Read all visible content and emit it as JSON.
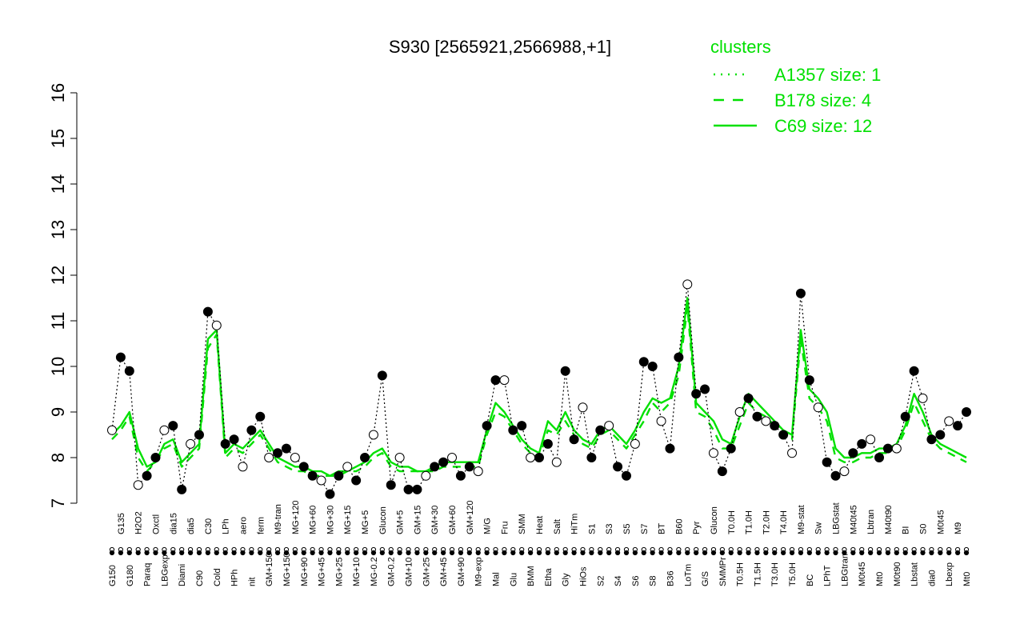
{
  "chart_data": {
    "type": "line",
    "title": "S930 [2565921,2566988,+1]",
    "xlabel": "",
    "ylabel": "",
    "ylim": [
      7,
      16
    ],
    "y_ticks": [
      7,
      8,
      9,
      10,
      11,
      12,
      13,
      14,
      15,
      16
    ],
    "x_tick_labels": [
      "G150",
      "G135",
      "G180",
      "H2O2",
      "Paraq",
      "Oxctl",
      "LBGexp",
      "dia15",
      "Diami",
      "dia5",
      "C90",
      "C30",
      "Cold",
      "LPh",
      "HPh",
      "aero",
      "nit",
      "ferm",
      "GM+150",
      "M9-tran",
      "MG+150",
      "MG+120",
      "MG+90",
      "MG+60",
      "MG+45",
      "MG+30",
      "MG+25",
      "MG+15",
      "MG+10",
      "MG+5",
      "MG-0.2",
      "Glucon",
      "GM-0.2",
      "GM+5",
      "GM+10",
      "GM+15",
      "GM+25",
      "GM+30",
      "GM+45",
      "GM+60",
      "GM+90",
      "GM+120",
      "M9-exp",
      "M/G",
      "Mal",
      "Fru",
      "Glu",
      "SMM",
      "BMM",
      "Heat",
      "Etha",
      "Salt",
      "Gly",
      "HiTm",
      "HiOs",
      "S1",
      "S2",
      "S3",
      "S4",
      "S5",
      "S6",
      "S7",
      "S8",
      "BT",
      "B36",
      "B60",
      "LoTm",
      "Pyr",
      "G/S",
      "Glucon",
      "SMMPr",
      "T0.0H",
      "T0.5H",
      "T1.0H",
      "T1.5H",
      "T2.0H",
      "T3.0H",
      "T4.0H",
      "T5.0H",
      "M9-stat",
      "BC",
      "Sw",
      "LPhT",
      "LBGstat",
      "LBGtran",
      "M40t45",
      "M0t45",
      "Lbtran",
      "Mt0",
      "M40t90",
      "M0t90",
      "BI",
      "Lbstat",
      "S0",
      "dia0",
      "M0t45",
      "Lbexp",
      "M9",
      "Mt0"
    ],
    "legend": {
      "title": "clusters",
      "position": "top-right",
      "entries": [
        {
          "label": "A1357 size: 1",
          "style": "dotted"
        },
        {
          "label": "B178 size: 4",
          "style": "dashed"
        },
        {
          "label": "C69 size: 12",
          "style": "solid"
        }
      ]
    },
    "series": [
      {
        "name": "C69 size: 12",
        "color": "#00e000",
        "values": [
          8.5,
          8.7,
          9.0,
          8.2,
          7.8,
          7.9,
          8.3,
          8.4,
          7.9,
          8.1,
          8.3,
          10.6,
          10.8,
          8.1,
          8.3,
          8.2,
          8.4,
          8.6,
          8.3,
          8.0,
          7.9,
          7.8,
          7.8,
          7.7,
          7.7,
          7.6,
          7.7,
          7.7,
          7.8,
          7.9,
          8.1,
          8.2,
          7.9,
          7.8,
          7.8,
          7.7,
          7.7,
          7.8,
          7.9,
          7.9,
          7.9,
          7.9,
          7.9,
          8.6,
          9.2,
          9.0,
          8.7,
          8.4,
          8.2,
          8.1,
          8.8,
          8.6,
          9.0,
          8.6,
          8.4,
          8.3,
          8.6,
          8.7,
          8.5,
          8.3,
          8.6,
          9.0,
          9.3,
          9.2,
          9.3,
          10.0,
          11.5,
          9.2,
          9.0,
          8.8,
          8.4,
          8.3,
          8.9,
          9.4,
          9.2,
          9.0,
          8.8,
          8.6,
          8.5,
          10.8,
          9.5,
          9.3,
          9.0,
          8.2,
          8.0,
          8.0,
          8.1,
          8.1,
          8.2,
          8.2,
          8.3,
          8.7,
          9.4,
          9.0,
          8.5,
          8.3,
          8.2,
          8.1,
          8.0
        ]
      },
      {
        "name": "B178 size: 4",
        "color": "#00e000",
        "values": [
          8.4,
          8.6,
          8.9,
          8.0,
          7.7,
          7.9,
          8.2,
          8.3,
          7.8,
          8.0,
          8.2,
          10.4,
          10.7,
          8.0,
          8.2,
          8.1,
          8.3,
          8.5,
          8.2,
          7.9,
          7.8,
          7.7,
          7.7,
          7.6,
          7.6,
          7.6,
          7.6,
          7.7,
          7.7,
          7.8,
          8.0,
          8.1,
          7.8,
          7.7,
          7.7,
          7.7,
          7.7,
          7.7,
          7.8,
          7.8,
          7.8,
          7.8,
          7.8,
          8.5,
          9.0,
          8.9,
          8.6,
          8.3,
          8.1,
          8.0,
          8.6,
          8.5,
          8.8,
          8.5,
          8.3,
          8.2,
          8.5,
          8.6,
          8.4,
          8.2,
          8.5,
          8.8,
          9.2,
          9.0,
          9.2,
          9.8,
          11.3,
          9.0,
          8.9,
          8.6,
          8.2,
          8.2,
          8.7,
          9.2,
          9.0,
          8.9,
          8.7,
          8.5,
          8.4,
          10.6,
          9.3,
          9.1,
          8.8,
          8.0,
          7.9,
          7.9,
          8.0,
          8.0,
          8.1,
          8.1,
          8.2,
          8.6,
          9.2,
          8.8,
          8.4,
          8.2,
          8.1,
          8.0,
          7.9
        ]
      },
      {
        "name": "A1357 size: 1",
        "color": "#00e000",
        "values": [
          8.6,
          10.2,
          9.9,
          7.4,
          7.6,
          8.0,
          8.6,
          8.7,
          7.3,
          8.3,
          8.5,
          11.2,
          10.9,
          8.3,
          8.4,
          7.8,
          8.6,
          8.9,
          8.0,
          8.1,
          8.2,
          8.0,
          7.8,
          7.6,
          7.5,
          7.2,
          7.6,
          7.8,
          7.5,
          8.0,
          8.5,
          9.8,
          7.4,
          8.0,
          7.3,
          7.3,
          7.6,
          7.8,
          7.9,
          8.0,
          7.6,
          7.8,
          7.7,
          8.7,
          9.7,
          9.7,
          8.6,
          8.7,
          8.0,
          8.0,
          8.3,
          7.9,
          9.9,
          8.4,
          9.1,
          8.0,
          8.6,
          8.7,
          7.8,
          7.6,
          8.3,
          10.1,
          10.0,
          8.8,
          8.2,
          10.2,
          11.8,
          9.4,
          9.5,
          8.1,
          7.7,
          8.2,
          9.0,
          9.3,
          8.9,
          8.8,
          8.7,
          8.5,
          8.1,
          11.6,
          9.7,
          9.1,
          7.9,
          7.6,
          7.7,
          8.1,
          8.3,
          8.4,
          8.0,
          8.2,
          8.2,
          8.9,
          9.9,
          9.3,
          8.4,
          8.5,
          8.8,
          8.7,
          9.0
        ]
      }
    ]
  }
}
